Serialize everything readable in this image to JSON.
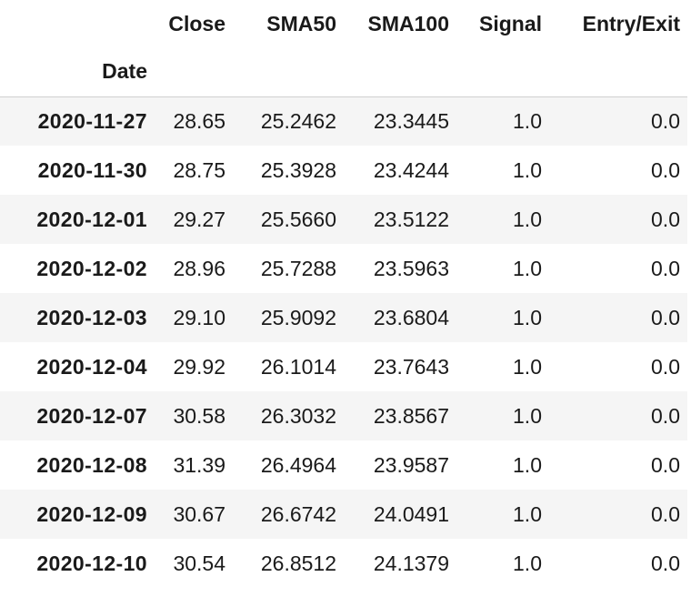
{
  "table": {
    "columns": [
      "Close",
      "SMA50",
      "SMA100",
      "Signal",
      "Entry/Exit"
    ],
    "index_name": "Date",
    "rows": [
      {
        "date": "2020-11-27",
        "values": [
          "28.65",
          "25.2462",
          "23.3445",
          "1.0",
          "0.0"
        ]
      },
      {
        "date": "2020-11-30",
        "values": [
          "28.75",
          "25.3928",
          "23.4244",
          "1.0",
          "0.0"
        ]
      },
      {
        "date": "2020-12-01",
        "values": [
          "29.27",
          "25.5660",
          "23.5122",
          "1.0",
          "0.0"
        ]
      },
      {
        "date": "2020-12-02",
        "values": [
          "28.96",
          "25.7288",
          "23.5963",
          "1.0",
          "0.0"
        ]
      },
      {
        "date": "2020-12-03",
        "values": [
          "29.10",
          "25.9092",
          "23.6804",
          "1.0",
          "0.0"
        ]
      },
      {
        "date": "2020-12-04",
        "values": [
          "29.92",
          "26.1014",
          "23.7643",
          "1.0",
          "0.0"
        ]
      },
      {
        "date": "2020-12-07",
        "values": [
          "30.58",
          "26.3032",
          "23.8567",
          "1.0",
          "0.0"
        ]
      },
      {
        "date": "2020-12-08",
        "values": [
          "31.39",
          "26.4964",
          "23.9587",
          "1.0",
          "0.0"
        ]
      },
      {
        "date": "2020-12-09",
        "values": [
          "30.67",
          "26.6742",
          "24.0491",
          "1.0",
          "0.0"
        ]
      },
      {
        "date": "2020-12-10",
        "values": [
          "30.54",
          "26.8512",
          "24.1379",
          "1.0",
          "0.0"
        ]
      }
    ]
  }
}
